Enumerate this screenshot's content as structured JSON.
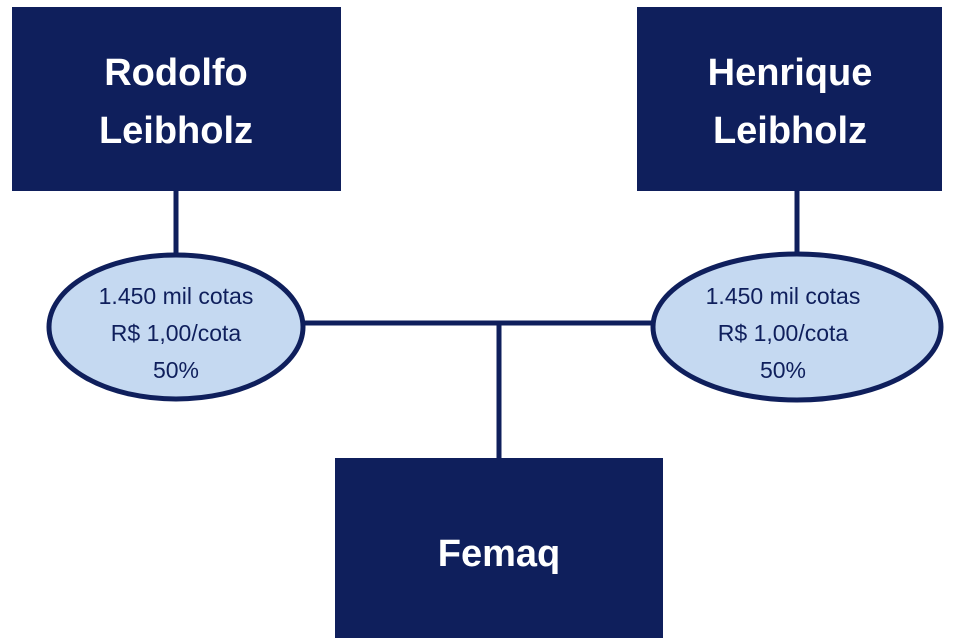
{
  "nodes": [
    {
      "lines": [
        "Rodolfo",
        "Leibholz"
      ]
    },
    {
      "lines": [
        "Henrique",
        "Leibholz"
      ]
    },
    {
      "lines": [
        "Femaq"
      ]
    }
  ],
  "stakes": [
    {
      "lines": [
        "1.450 mil cotas",
        "R$ 1,00/cota",
        "50%"
      ]
    },
    {
      "lines": [
        "1.450 mil cotas",
        "R$ 1,00/cota",
        "50%"
      ]
    }
  ]
}
